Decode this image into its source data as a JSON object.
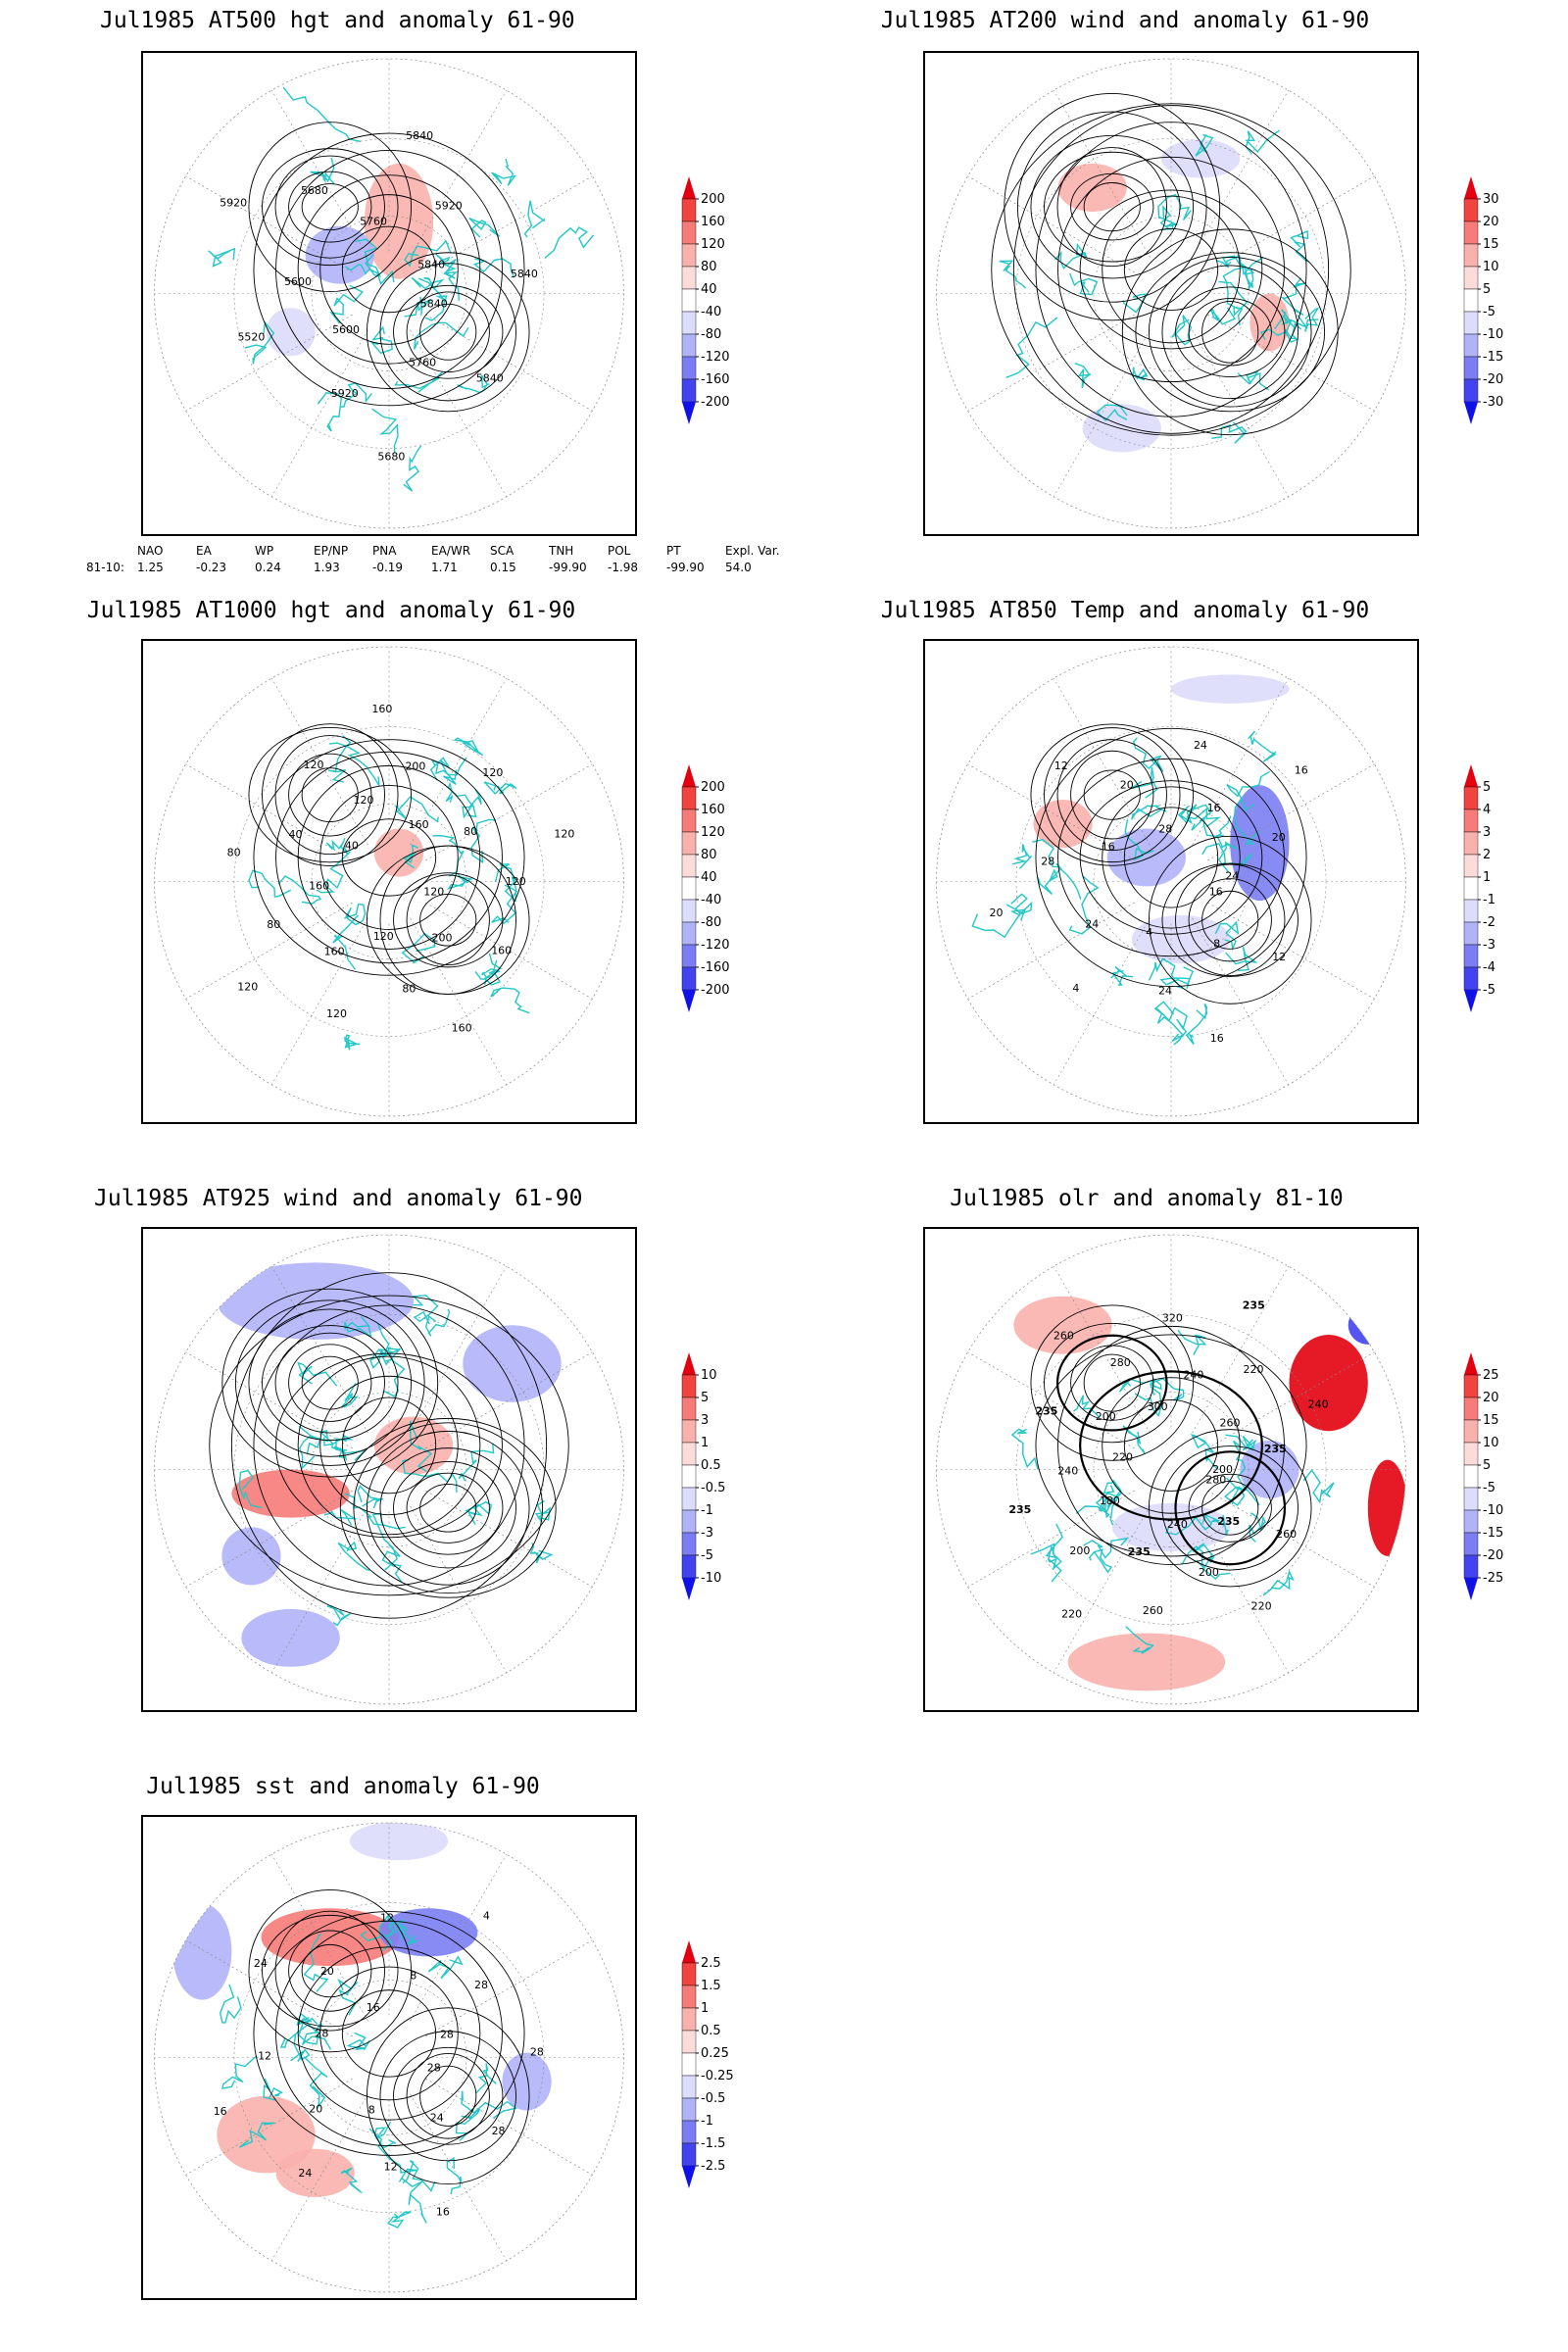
{
  "panels": [
    {
      "id": "at500",
      "title": "Jul1985 AT500 hgt and anomaly 61-90",
      "colorbar": {
        "levels": [
          "200",
          "160",
          "120",
          "80",
          "40",
          "-40",
          "-80",
          "-120",
          "-160",
          "-200"
        ]
      },
      "contour_labels": [
        "5840",
        "5840",
        "5760",
        "5680",
        "5920",
        "5600",
        "5520",
        "5600",
        "5920",
        "5680",
        "5760",
        "5840",
        "5920",
        "5840",
        "5840"
      ]
    },
    {
      "id": "at200",
      "title": "Jul1985 AT200 wind and anomaly 61-90",
      "colorbar": {
        "levels": [
          "30",
          "20",
          "15",
          "10",
          "5",
          "-5",
          "-10",
          "-15",
          "-20",
          "-30"
        ]
      },
      "contour_labels": []
    },
    {
      "id": "at1000",
      "title": "Jul1985 AT1000 hgt and anomaly 61-90",
      "colorbar": {
        "levels": [
          "200",
          "160",
          "120",
          "80",
          "40",
          "-40",
          "-80",
          "-120",
          "-160",
          "-200"
        ]
      },
      "contour_labels": [
        "120",
        "160",
        "200",
        "160",
        "80",
        "120",
        "120",
        "160",
        "120",
        "80",
        "160",
        "80",
        "40",
        "40",
        "120",
        "120",
        "160",
        "200",
        "160",
        "120",
        "80",
        "120",
        "120"
      ]
    },
    {
      "id": "at850",
      "title": "Jul1985 AT850 Temp and anomaly 61-90",
      "colorbar": {
        "levels": [
          "5",
          "4",
          "3",
          "2",
          "1",
          "-1",
          "-2",
          "-3",
          "-4",
          "-5"
        ]
      },
      "contour_labels": [
        "16",
        "12",
        "8",
        "16",
        "24",
        "4",
        "4",
        "24",
        "20",
        "28",
        "16",
        "12",
        "20",
        "28",
        "24",
        "16",
        "16",
        "20",
        "24"
      ]
    },
    {
      "id": "at925",
      "title": "Jul1985 AT925 wind and anomaly 61-90",
      "colorbar": {
        "levels": [
          "10",
          "5",
          "3",
          "1",
          "0.5",
          "-0.5",
          "-1",
          "-3",
          "-5",
          "-10"
        ]
      },
      "contour_labels": []
    },
    {
      "id": "olr",
      "title": "Jul1985 olr and anomaly 81-10",
      "colorbar": {
        "levels": [
          "25",
          "20",
          "15",
          "10",
          "5",
          "-5",
          "-10",
          "-15",
          "-20",
          "-25"
        ]
      },
      "contour_labels": [
        "280",
        "260",
        "235",
        "220",
        "200",
        "240",
        "260",
        "235",
        "220",
        "200",
        "180",
        "235",
        "240",
        "220",
        "235",
        "200",
        "260",
        "280",
        "300",
        "320",
        "240",
        "235",
        "220",
        "260",
        "240",
        "235",
        "200"
      ]
    },
    {
      "id": "sst",
      "title": "Jul1985 sst and anomaly 61-90",
      "colorbar": {
        "levels": [
          "2.5",
          "1.5",
          "1",
          "0.5",
          "0.25",
          "-0.25",
          "-0.5",
          "-1",
          "-1.5",
          "-2.5"
        ]
      },
      "contour_labels": [
        "28",
        "28",
        "24",
        "16",
        "12",
        "8",
        "24",
        "20",
        "16",
        "12",
        "28",
        "24",
        "20",
        "16",
        "12",
        "8",
        "4",
        "28",
        "28",
        "28"
      ]
    }
  ],
  "index_table": {
    "headers": [
      "NAO",
      "EA",
      "WP",
      "EP/NP",
      "PNA",
      "EA/WR",
      "SCA",
      "TNH",
      "POL",
      "PT",
      "Expl. Var."
    ],
    "row_label": "81-10:",
    "values": [
      "1.25",
      "-0.23",
      "0.24",
      "1.93",
      "-0.19",
      "1.71",
      "0.15",
      "-99.90",
      "-1.98",
      "-99.90",
      "54.0"
    ]
  },
  "colors": {
    "anomaly_scale": [
      "#e3000f",
      "#f1433f",
      "#f67b79",
      "#f9b1ad",
      "#fcdcd9",
      "#ffffff",
      "#dcdcfc",
      "#b0b3f8",
      "#7b7ef3",
      "#4343ef",
      "#1010e8"
    ],
    "coastline": "#22c7c7",
    "contour": "#000000"
  }
}
